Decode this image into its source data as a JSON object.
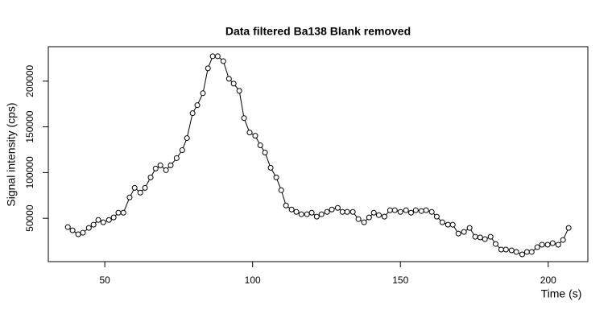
{
  "chart_data": {
    "type": "line",
    "title": "Data filtered Ba138 Blank removed",
    "x_label": "Time (s)",
    "y_label": "Signal intensity (cps)",
    "markers": true,
    "color": "#000000",
    "xlim": [
      30.9,
      213.4
    ],
    "ylim": [
      2600,
      237700
    ],
    "xticks": [
      50,
      100,
      150,
      200
    ],
    "yticks": [
      50000,
      100000,
      150000,
      200000
    ],
    "x": [
      37.5,
      39.1,
      41.0,
      42.6,
      44.6,
      46.2,
      47.8,
      49.5,
      51.4,
      53.0,
      54.6,
      56.3,
      58.4,
      60.1,
      62.0,
      63.6,
      65.5,
      67.2,
      68.8,
      70.7,
      72.3,
      74.3,
      76.2,
      77.8,
      79.7,
      81.3,
      83.2,
      84.9,
      86.5,
      88.2,
      90.1,
      92.0,
      93.6,
      95.5,
      97.1,
      99.0,
      100.9,
      102.6,
      104.2,
      106.1,
      108.0,
      109.7,
      111.3,
      113.2,
      114.8,
      116.5,
      118.4,
      120.0,
      121.7,
      123.3,
      125.2,
      126.8,
      128.8,
      130.4,
      132.0,
      133.9,
      135.8,
      137.7,
      139.4,
      141.0,
      142.7,
      144.6,
      146.5,
      148.1,
      150.0,
      151.9,
      153.6,
      155.2,
      157.1,
      158.7,
      160.6,
      162.3,
      164.2,
      166.1,
      167.7,
      169.6,
      171.5,
      173.4,
      175.3,
      177.0,
      178.6,
      180.5,
      182.2,
      184.1,
      185.7,
      187.6,
      189.2,
      191.2,
      192.8,
      194.4,
      196.3,
      197.9,
      199.8,
      201.5,
      203.4,
      205.0,
      206.9
    ],
    "series": [
      {
        "name": "Ba138",
        "color": "#000000",
        "values": [
          40400,
          36800,
          32500,
          34200,
          39500,
          43000,
          48200,
          45600,
          48200,
          50900,
          56100,
          56100,
          72800,
          83300,
          78100,
          83300,
          94700,
          104400,
          107900,
          102600,
          107900,
          115800,
          124500,
          137700,
          164900,
          173700,
          186800,
          214000,
          227200,
          227200,
          221900,
          202600,
          197300,
          189400,
          159600,
          143800,
          140300,
          129800,
          121900,
          105300,
          94700,
          80700,
          64000,
          59600,
          57000,
          54400,
          54400,
          56100,
          51800,
          54400,
          57000,
          59600,
          61400,
          57000,
          57000,
          57000,
          49100,
          45600,
          50900,
          56100,
          53500,
          51800,
          58800,
          58800,
          57000,
          58800,
          56100,
          58800,
          57900,
          58800,
          57000,
          51800,
          45600,
          43000,
          43000,
          33300,
          35100,
          39500,
          29800,
          29000,
          27200,
          29800,
          21900,
          15800,
          15800,
          14900,
          13200,
          10500,
          13200,
          13200,
          18400,
          21100,
          21100,
          22800,
          21100,
          26300,
          39500
        ]
      }
    ]
  }
}
